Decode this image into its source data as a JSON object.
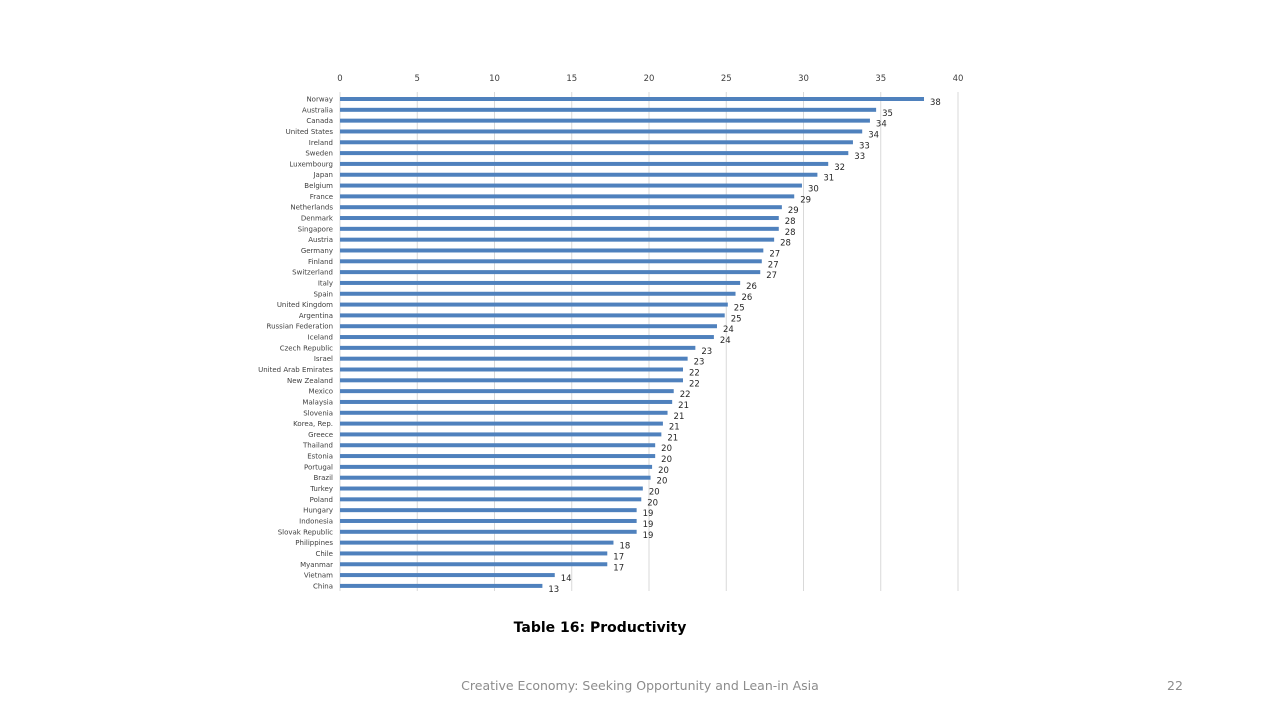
{
  "chart_data": {
    "type": "bar",
    "orientation": "horizontal",
    "categories": [
      "Norway",
      "Australia",
      "Canada",
      "United States",
      "Ireland",
      "Sweden",
      "Luxembourg",
      "Japan",
      "Belgium",
      "France",
      "Netherlands",
      "Denmark",
      "Singapore",
      "Austria",
      "Germany",
      "Finland",
      "Switzerland",
      "Italy",
      "Spain",
      "United Kingdom",
      "Argentina",
      "Russian Federation",
      "Iceland",
      "Czech Republic",
      "Israel",
      "United Arab Emirates",
      "New Zealand",
      "Mexico",
      "Malaysia",
      "Slovenia",
      "Korea, Rep.",
      "Greece",
      "Thailand",
      "Estonia",
      "Portugal",
      "Brazil",
      "Turkey",
      "Poland",
      "Hungary",
      "Indonesia",
      "Slovak Republic",
      "Philippines",
      "Chile",
      "Myanmar",
      "Vietnam",
      "China"
    ],
    "values": [
      37.8,
      34.7,
      34.3,
      33.8,
      33.2,
      32.9,
      31.6,
      30.9,
      29.9,
      29.4,
      28.6,
      28.4,
      28.4,
      28.1,
      27.4,
      27.3,
      27.2,
      25.9,
      25.6,
      25.1,
      24.9,
      24.4,
      24.2,
      23.0,
      22.5,
      22.2,
      22.2,
      21.6,
      21.5,
      21.2,
      20.9,
      20.8,
      20.4,
      20.4,
      20.2,
      20.1,
      19.6,
      19.5,
      19.2,
      19.2,
      19.2,
      17.7,
      17.3,
      17.3,
      13.9,
      13.1
    ],
    "labels": [
      "38",
      "35",
      "34",
      "34",
      "33",
      "33",
      "32",
      "31",
      "30",
      "29",
      "29",
      "28",
      "28",
      "28",
      "27",
      "27",
      "27",
      "26",
      "26",
      "25",
      "25",
      "24",
      "24",
      "23",
      "23",
      "22",
      "22",
      "22",
      "21",
      "21",
      "21",
      "21",
      "20",
      "20",
      "20",
      "20",
      "20",
      "20",
      "19",
      "19",
      "19",
      "18",
      "17",
      "17",
      "14",
      "13"
    ],
    "xticks": [
      "0",
      "5",
      "10",
      "15",
      "20",
      "25",
      "30",
      "35",
      "40"
    ],
    "xlim": [
      0,
      40
    ],
    "bar_color": "#4f81bd",
    "grid": true,
    "legend": "none"
  },
  "caption": "Table 16: Productivity",
  "footer": "Creative Economy: Seeking Opportunity and Lean-in Asia",
  "page_number": "22"
}
